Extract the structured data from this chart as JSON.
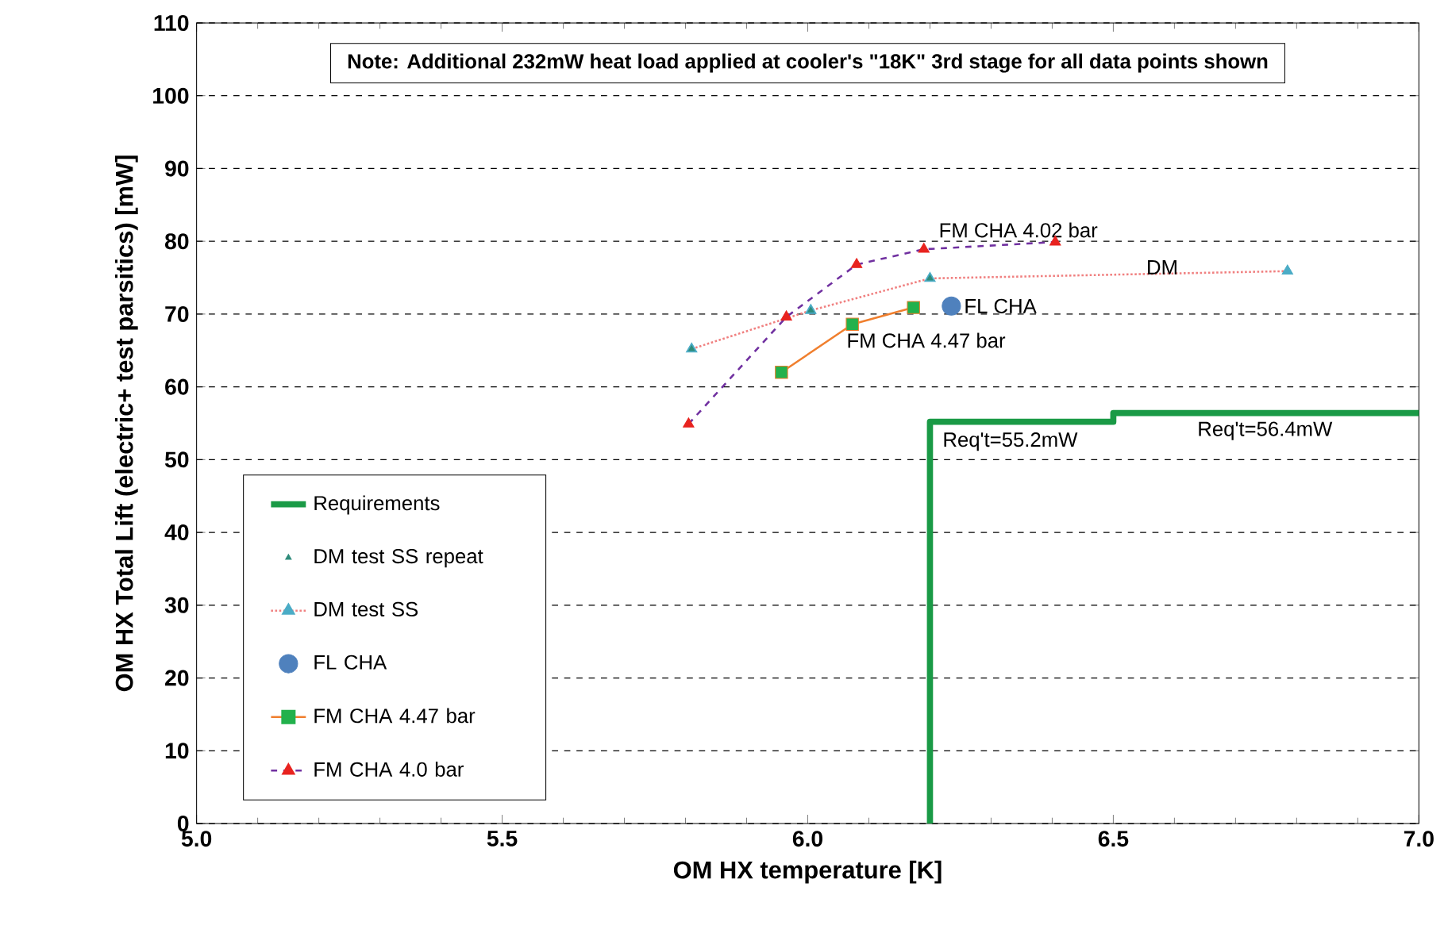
{
  "chart_data": {
    "type": "line",
    "xlabel": "OM HX temperature [K]",
    "ylabel": "OM HX Total Lift (electric+ test parsitics) [mW]",
    "xlim": [
      5.0,
      7.0
    ],
    "xticks": [
      {
        "value": 5.0,
        "label": "5.0"
      },
      5.5,
      {
        "value": 6.0,
        "label": "6.0"
      },
      6.5,
      {
        "value": 7.0,
        "label": "7.0"
      }
    ],
    "ylim": [
      0,
      110
    ],
    "yticks": [
      0,
      10,
      20,
      30,
      40,
      50,
      60,
      70,
      80,
      90,
      100,
      110
    ],
    "grid": "y",
    "legend": "bottom left",
    "series": [
      {
        "name": "Requirements",
        "color": "#1a9a46",
        "marker": "none",
        "line_style": "solid",
        "x": [
          6.2,
          6.2,
          6.5,
          6.5,
          7.0
        ],
        "values": [
          0,
          55.2,
          55.2,
          56.4,
          56.4
        ]
      },
      {
        "name": "DM test SS repeat",
        "type": "scatter",
        "color": "#2e8b7a",
        "marker": "triangle",
        "x": [
          5.81,
          6.005,
          6.2
        ],
        "values": [
          65.2,
          70.5,
          74.9
        ]
      },
      {
        "name": "DM test SS",
        "color": "#f08080",
        "colors": [
          "#4bacc6",
          "#4bacc6",
          "#4bacc6",
          "#4bacc6"
        ],
        "marker": "triangle",
        "line_style": "dotted",
        "x": [
          5.81,
          6.005,
          6.2,
          6.785
        ],
        "values": [
          65.2,
          70.5,
          74.9,
          75.9
        ]
      },
      {
        "name": "FL CHA",
        "type": "scatter",
        "color": "#4f81bd",
        "marker": "circle",
        "x": [
          6.235
        ],
        "values": [
          71.1
        ]
      },
      {
        "name": "FM CHA  4.47 bar",
        "color": "#f07f2e",
        "colors": [
          "#22b14c",
          "#22b14c",
          "#22b14c"
        ],
        "marker": "square",
        "line_style": "solid",
        "x": [
          5.957,
          6.073,
          6.173
        ],
        "values": [
          62.0,
          68.6,
          70.9
        ]
      },
      {
        "name": "FM CHA  4.0 bar",
        "color": "#7030a0",
        "colors": [
          "#e8231f",
          "#e8231f",
          "#e8231f",
          "#e8231f",
          "#e8231f"
        ],
        "marker": "triangle",
        "line_style": "dashed",
        "x": [
          5.805,
          5.965,
          6.08,
          6.19,
          6.405
        ],
        "values": [
          54.9,
          69.6,
          76.8,
          78.9,
          79.9
        ]
      }
    ],
    "annotations": [
      "Note: Additional 232mW heat load applied at cooler's \"18K\" 3rd stage for all data points shown",
      {
        "text": "FM CHA 4.02 bar",
        "x": 6.405,
        "y": 79.9
      },
      "DM",
      {
        "text": "FL CHA",
        "x": 6.235,
        "y": 71.1
      },
      {
        "text": "FM CHA 4.47 bar",
        "x": 6.073,
        "y": 68.6
      },
      {
        "text": "Req't=55.2mW",
        "x": 6.2,
        "y": 55.2
      },
      "Req't=56.4mW"
    ]
  }
}
